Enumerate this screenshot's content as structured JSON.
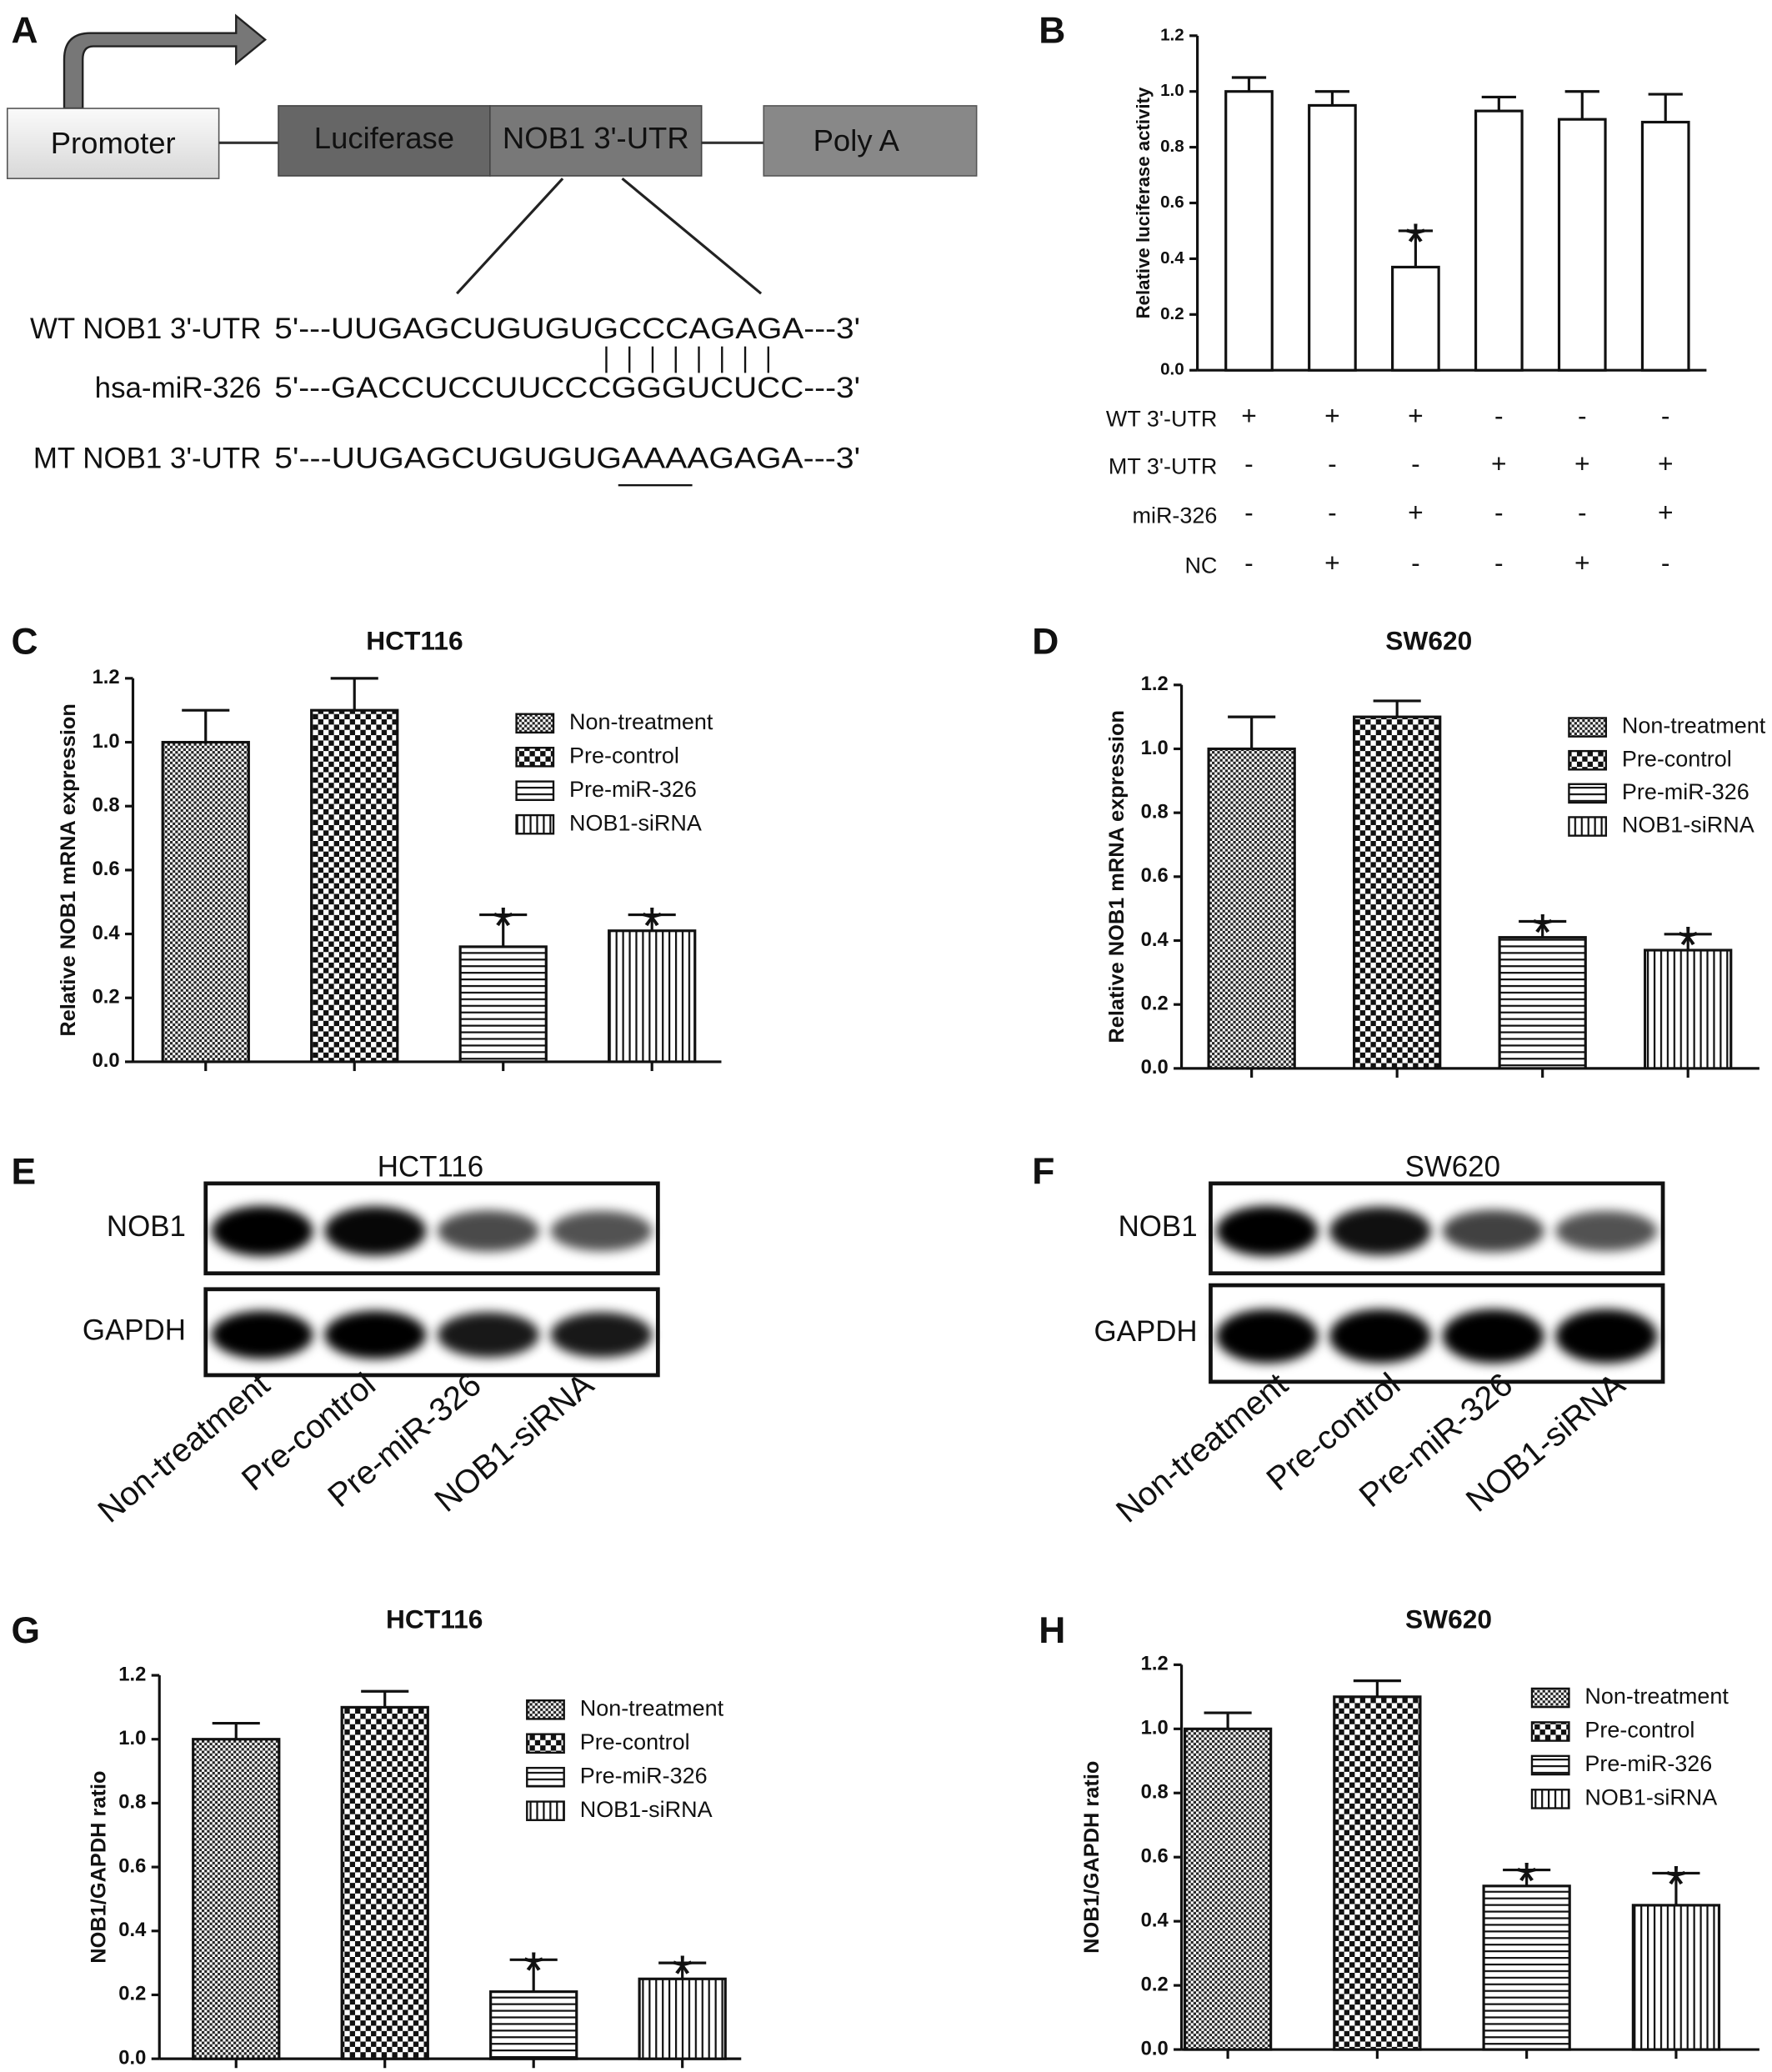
{
  "panel_labels": [
    "A",
    "B",
    "C",
    "D",
    "E",
    "F",
    "G",
    "H"
  ],
  "diagram": {
    "elements": [
      "Promoter",
      "Luciferase",
      "NOB1 3'-UTR",
      "Poly A"
    ],
    "sequences": [
      {
        "label": "WT NOB1 3'-UTR",
        "sequence": "5'---UUGAGCUGUGUGCCCAGAGA---3'"
      },
      {
        "label": "hsa-miR-326",
        "sequence": "5'---GACCUCCUUCCCGGGUCUCC---3'"
      },
      {
        "label": "MT NOB1 3'-UTR",
        "sequence": "5'---UUGAGCUGUGUGAAAAGAGA---3'"
      }
    ]
  },
  "blots": [
    {
      "title": "HCT116",
      "rows": [
        "NOB1",
        "GAPDH"
      ],
      "lanes": [
        "Non-treatment",
        "Pre-control",
        "Pre-miR-326",
        "NOB1-siRNA"
      ]
    },
    {
      "title": "SW620",
      "rows": [
        "NOB1",
        "GAPDH"
      ],
      "lanes": [
        "Non-treatment",
        "Pre-control",
        "Pre-miR-326",
        "NOB1-siRNA"
      ]
    }
  ],
  "chart_data": [
    {
      "type": "bar",
      "ylabel": "Relative luciferase activity",
      "categories": [
        null,
        null,
        null,
        null,
        null,
        null
      ],
      "values": [
        1.0,
        0.95,
        0.37,
        0.93,
        0.9,
        0.89
      ],
      "errors": [
        0.05,
        0.05,
        0.13,
        0.05,
        0.1,
        0.1
      ],
      "significance": [
        null,
        null,
        "*",
        null,
        null,
        null
      ],
      "color": "#ffffff",
      "ylim": [
        0,
        1.2
      ],
      "yticks": [
        {
          "value": 0,
          "label": "0.0"
        },
        0.2,
        0.4,
        0.6,
        0.8,
        {
          "value": 1,
          "label": "1.0"
        },
        1.2
      ],
      "conditions": [
        {
          "name": "WT 3'-UTR",
          "signs": [
            "+",
            "+",
            "+",
            "-",
            "-",
            "-"
          ]
        },
        {
          "name": "MT 3'-UTR",
          "signs": [
            "-",
            "-",
            "-",
            "+",
            "+",
            "+"
          ]
        },
        {
          "name": "miR-326",
          "signs": [
            "-",
            "-",
            "+",
            "-",
            "-",
            "+"
          ]
        },
        {
          "name": "NC",
          "signs": [
            "-",
            "+",
            "-",
            "-",
            "+",
            "-"
          ]
        }
      ],
      "legend": false
    },
    {
      "type": "bar",
      "title": "HCT116",
      "ylabel": "Relative NOB1 mRNA expression",
      "categories": [
        "Non-treatment",
        "Pre-control",
        "Pre-miR-326",
        "NOB1-siRNA"
      ],
      "values": [
        1.0,
        1.1,
        0.36,
        0.41
      ],
      "errors": [
        0.1,
        0.1,
        0.1,
        0.05
      ],
      "significance": [
        null,
        null,
        "*",
        "*"
      ],
      "patterns": [
        "dots",
        "checker",
        "hlines",
        "vlines"
      ],
      "ylim": [
        0,
        1.2
      ],
      "yticks": [
        {
          "value": 0,
          "label": "0.0"
        },
        0.2,
        0.4,
        0.6,
        0.8,
        {
          "value": 1,
          "label": "1.0"
        },
        1.2
      ],
      "legend": true
    },
    {
      "type": "bar",
      "title": "SW620",
      "ylabel": "Relative NOB1 mRNA expression",
      "categories": [
        "Non-treatment",
        "Pre-control",
        "Pre-miR-326",
        "NOB1-siRNA"
      ],
      "values": [
        1.0,
        1.1,
        0.41,
        0.37
      ],
      "errors": [
        0.1,
        0.05,
        0.05,
        0.05
      ],
      "significance": [
        null,
        null,
        "*",
        "*"
      ],
      "patterns": [
        "dots",
        "checker",
        "hlines",
        "vlines"
      ],
      "ylim": [
        0,
        1.2
      ],
      "yticks": [
        {
          "value": 0,
          "label": "0.0"
        },
        0.2,
        0.4,
        0.6,
        0.8,
        {
          "value": 1,
          "label": "1.0"
        },
        1.2
      ],
      "legend": true
    },
    {
      "type": "bar",
      "title": "HCT116",
      "ylabel": "NOB1/GAPDH ratio",
      "categories": [
        "Non-treatment",
        "Pre-control",
        "Pre-miR-326",
        "NOB1-siRNA"
      ],
      "values": [
        1.0,
        1.1,
        0.21,
        0.25
      ],
      "errors": [
        0.05,
        0.05,
        0.1,
        0.05
      ],
      "significance": [
        null,
        null,
        "*",
        "*"
      ],
      "patterns": [
        "dots",
        "checker",
        "hlines",
        "vlines"
      ],
      "ylim": [
        0,
        1.2
      ],
      "yticks": [
        {
          "value": 0,
          "label": "0.0"
        },
        0.2,
        0.4,
        0.6,
        0.8,
        {
          "value": 1,
          "label": "1.0"
        },
        1.2
      ],
      "legend": true
    },
    {
      "type": "bar",
      "title": "SW620",
      "ylabel": "NOB1/GAPDH ratio",
      "categories": [
        "Non-treatment",
        "Pre-control",
        "Pre-miR-326",
        "NOB1-siRNA"
      ],
      "values": [
        1.0,
        1.1,
        0.51,
        0.45
      ],
      "errors": [
        0.05,
        0.05,
        0.05,
        0.1
      ],
      "significance": [
        null,
        null,
        "*",
        "*"
      ],
      "patterns": [
        "dots",
        "checker",
        "hlines",
        "vlines"
      ],
      "ylim": [
        0,
        1.2
      ],
      "yticks": [
        {
          "value": 0,
          "label": "0.0"
        },
        0.2,
        0.4,
        0.6,
        0.8,
        {
          "value": 1,
          "label": "1.0"
        },
        1.2
      ],
      "legend": true
    }
  ]
}
